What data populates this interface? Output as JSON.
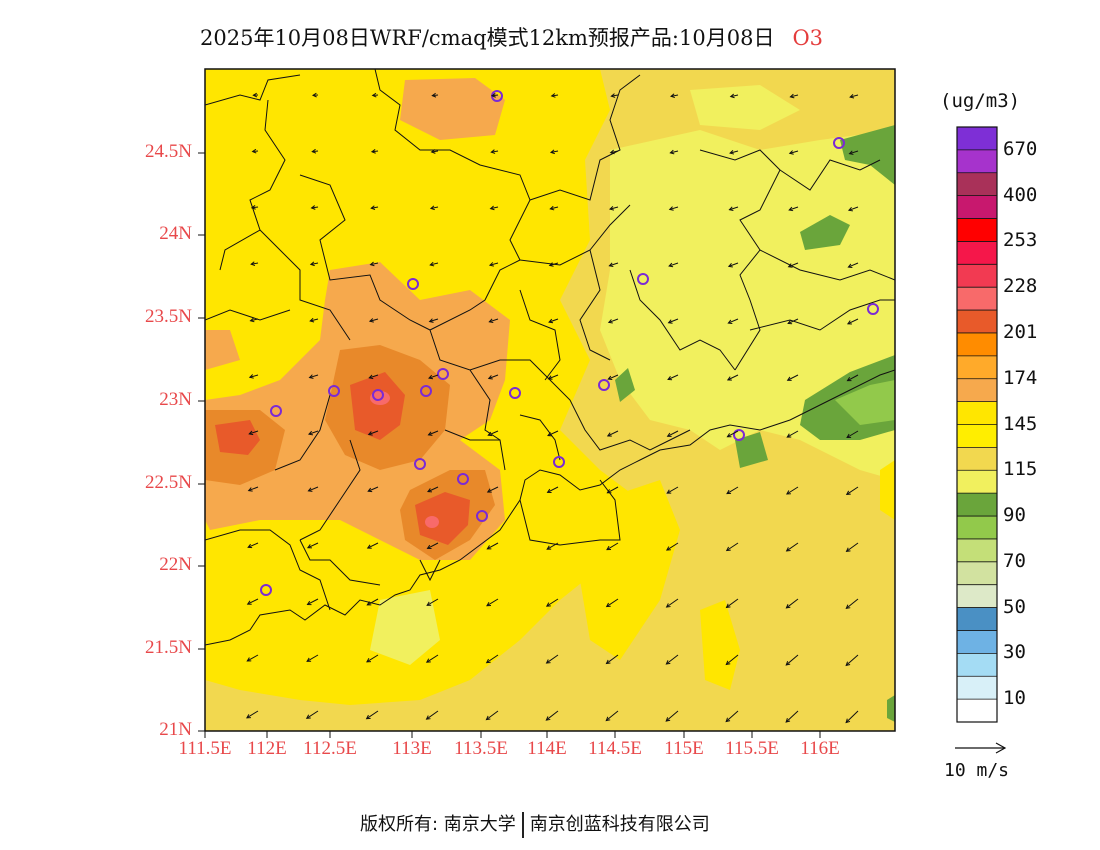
{
  "title": {
    "main": "2025年10月08日WRF/cmaq模式12km预报产品:10月08日",
    "pollutant": "O3",
    "pollutant_color": "#e43c3c"
  },
  "axes": {
    "y_ticks": [
      "24.5N",
      "24N",
      "23.5N",
      "23N",
      "22.5N",
      "22N",
      "21.5N",
      "21N"
    ],
    "x_ticks": [
      "111.5E",
      "112E",
      "112.5E",
      "113E",
      "113.5E",
      "114E",
      "114.5E",
      "115E",
      "115.5E",
      "116E"
    ],
    "label_color": "#e8484a"
  },
  "legend": {
    "unit": "(ug/m3)",
    "colors": [
      "#7e2fd6",
      "#a633cc",
      "#a93159",
      "#c8186e",
      "#ff0000",
      "#f5174a",
      "#f23a52",
      "#f86a6a",
      "#e85a2a",
      "#ff8c00",
      "#ffaa2a",
      "#f6a94d",
      "#ffe600",
      "#ffee00",
      "#f2d84f",
      "#f1f05e",
      "#6aa53b",
      "#92c94b",
      "#c4df78",
      "#d2e2a0",
      "#dde9c8",
      "#4a90c4",
      "#6eb2e4",
      "#a4dcf4",
      "#d8f0f8",
      "#ffffff"
    ],
    "labels": [
      "670",
      "400",
      "253",
      "228",
      "201",
      "174",
      "145",
      "115",
      "90",
      "70",
      "50",
      "30",
      "10"
    ]
  },
  "wind_reference": {
    "label": "10 m/s"
  },
  "stations_count": 18,
  "copyright": {
    "left": "版权所有: 南京大学",
    "right": "南京创蓝科技有限公司"
  }
}
